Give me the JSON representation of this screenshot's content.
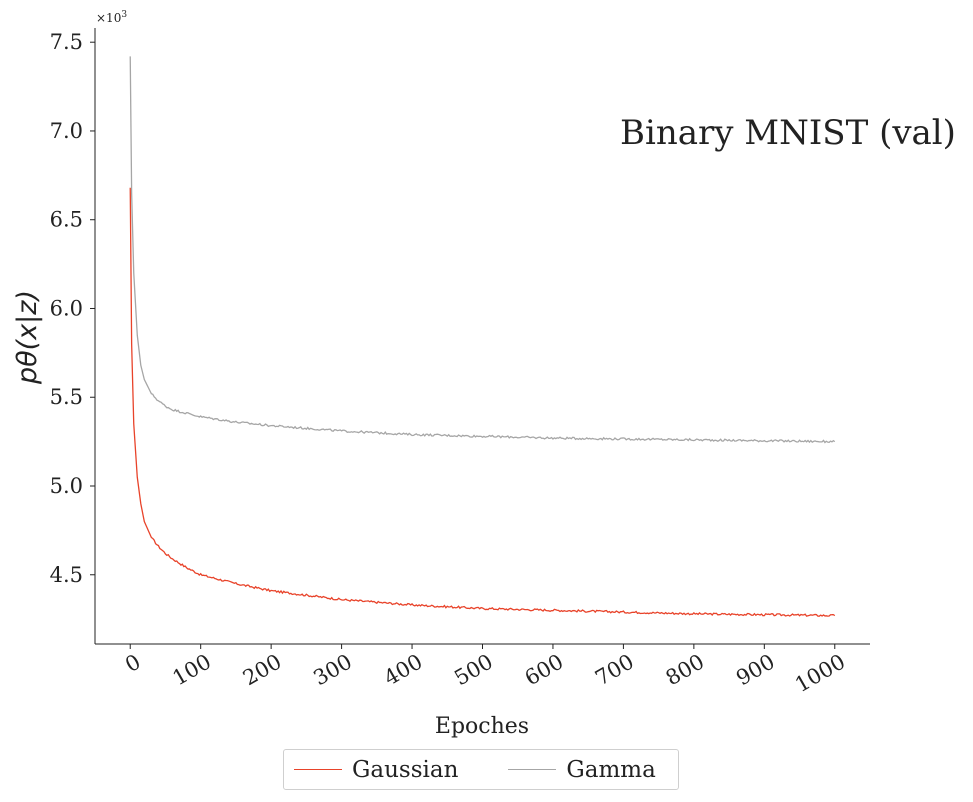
{
  "chart_data": {
    "type": "line",
    "title": "Binary MNIST (val)",
    "xlabel": "Epoches",
    "ylabel": "pθ(x|z)",
    "y_multiplier_label": "×10",
    "y_multiplier_exponent": "3",
    "xlim": [
      -50,
      1050
    ],
    "ylim": [
      4.11,
      7.58
    ],
    "xticks": [
      0,
      100,
      200,
      300,
      400,
      500,
      600,
      700,
      800,
      900,
      1000
    ],
    "yticks": [
      "4.5",
      "5.0",
      "5.5",
      "6.0",
      "6.5",
      "7.0",
      "7.5"
    ],
    "ytick_values": [
      4.5,
      5.0,
      5.5,
      6.0,
      6.5,
      7.0,
      7.5
    ],
    "legend_position": "bottom-center",
    "series": [
      {
        "name": "Gaussian",
        "color": "#e8432a",
        "x": [
          0,
          2,
          5,
          10,
          15,
          20,
          30,
          40,
          50,
          60,
          80,
          100,
          150,
          200,
          300,
          400,
          500,
          600,
          700,
          800,
          900,
          1000
        ],
        "values": [
          6.68,
          5.8,
          5.35,
          5.05,
          4.9,
          4.8,
          4.71,
          4.66,
          4.62,
          4.59,
          4.54,
          4.5,
          4.45,
          4.41,
          4.36,
          4.33,
          4.31,
          4.3,
          4.29,
          4.28,
          4.275,
          4.27
        ]
      },
      {
        "name": "Gamma",
        "color": "#a6a6a6",
        "x": [
          0,
          2,
          5,
          10,
          15,
          20,
          30,
          40,
          50,
          60,
          80,
          100,
          150,
          200,
          300,
          400,
          500,
          600,
          700,
          800,
          900,
          1000
        ],
        "values": [
          7.42,
          6.65,
          6.2,
          5.85,
          5.68,
          5.6,
          5.52,
          5.48,
          5.45,
          5.43,
          5.41,
          5.39,
          5.36,
          5.34,
          5.31,
          5.29,
          5.28,
          5.27,
          5.265,
          5.26,
          5.255,
          5.25
        ]
      }
    ]
  }
}
